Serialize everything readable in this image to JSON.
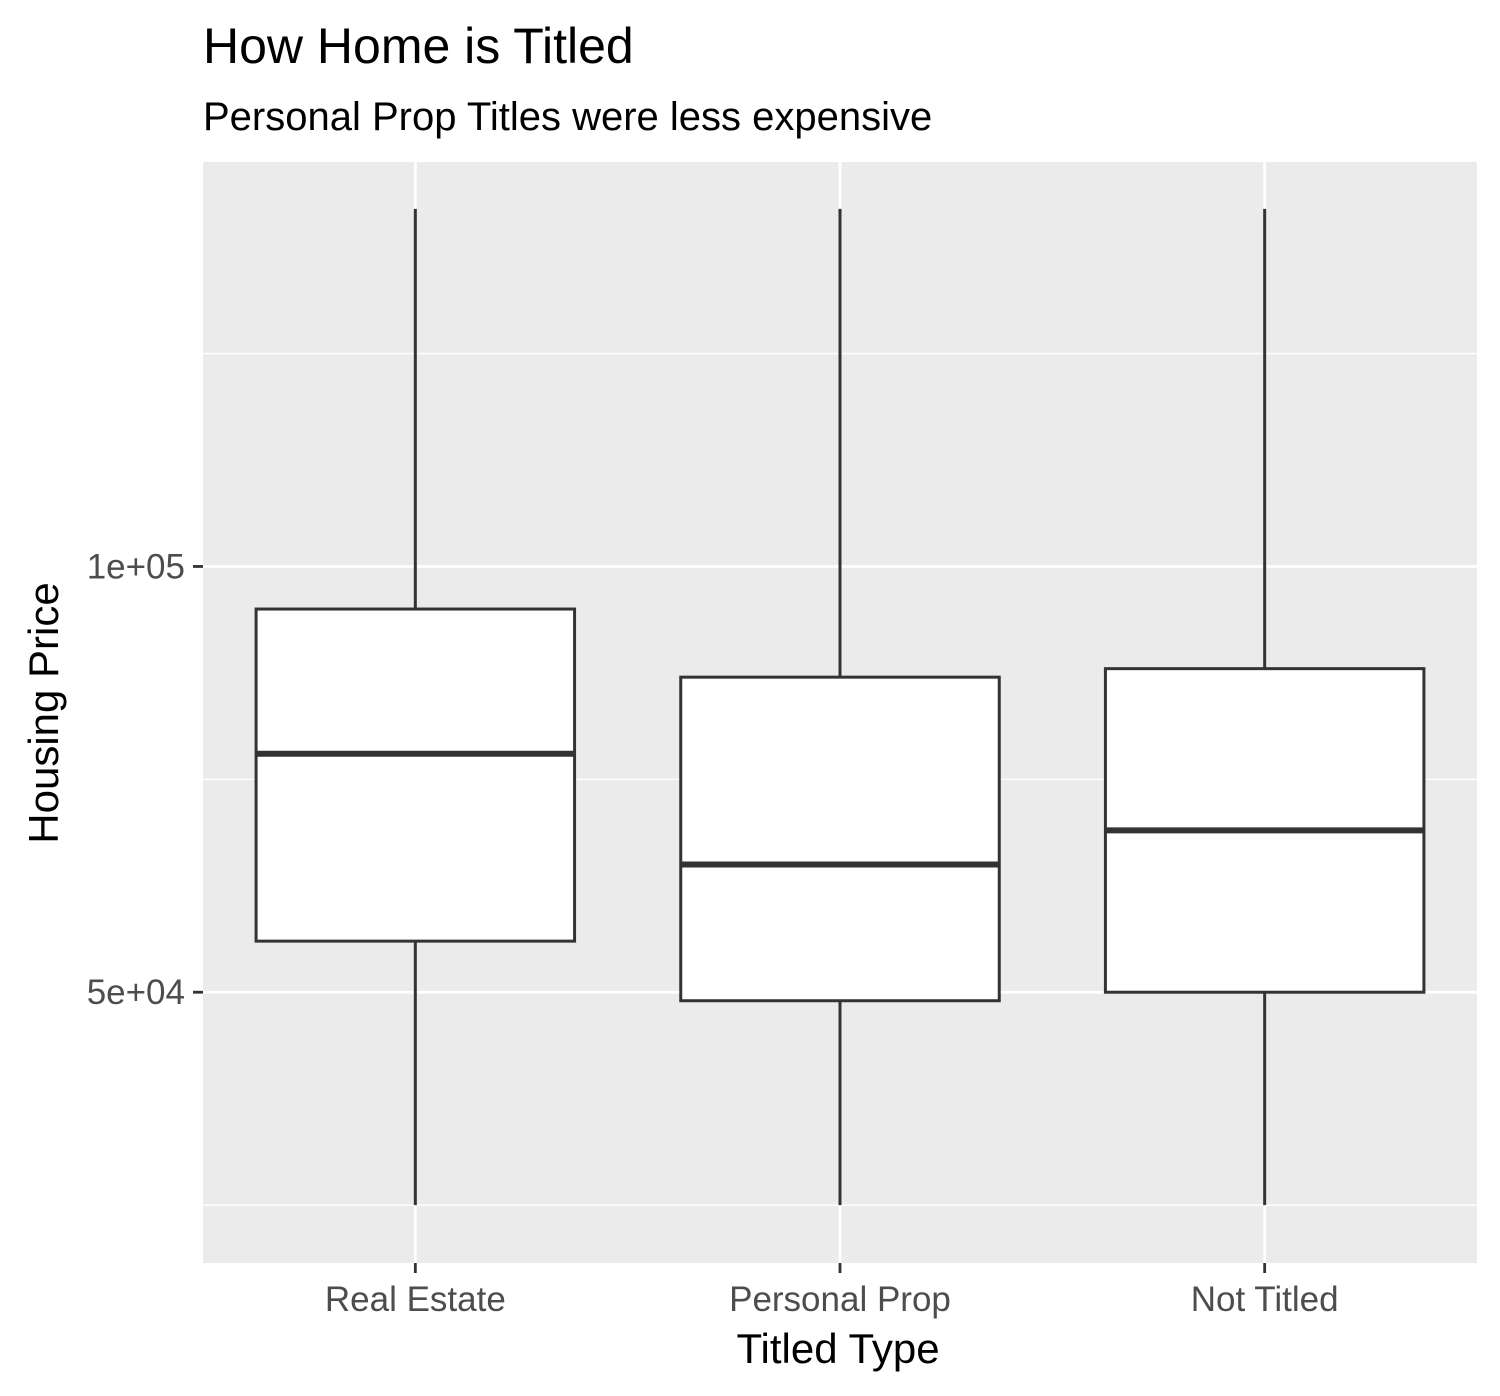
{
  "chart_data": {
    "type": "boxplot",
    "title": "How Home is Titled",
    "subtitle": "Personal Prop Titles were less expensive",
    "xlabel": "Titled Type",
    "ylabel": "Housing Price",
    "categories": [
      "Real Estate",
      "Personal Prop",
      "Not Titled"
    ],
    "boxes": [
      {
        "category": "Real Estate",
        "whisker_low": 25000,
        "q1": 56000,
        "median": 78000,
        "q3": 95000,
        "whisker_high": 142000
      },
      {
        "category": "Personal Prop",
        "whisker_low": 25000,
        "q1": 49000,
        "median": 65000,
        "q3": 87000,
        "whisker_high": 142000
      },
      {
        "category": "Not Titled",
        "whisker_low": 25000,
        "q1": 50000,
        "median": 69000,
        "q3": 88000,
        "whisker_high": 142000
      }
    ],
    "y_ticks": [
      50000,
      100000
    ],
    "y_tick_labels": [
      "5e+04",
      "1e+05"
    ],
    "y_minor_ticks": [
      25000,
      75000,
      125000
    ],
    "ylim": [
      18200,
      147500
    ],
    "grid": true,
    "legend": "none",
    "colors": {
      "panel_background": "#EBEBEB",
      "grid": "#FFFFFF",
      "box_fill": "#FFFFFF",
      "box_line": "#333333",
      "tick_text": "#4D4D4D"
    }
  }
}
